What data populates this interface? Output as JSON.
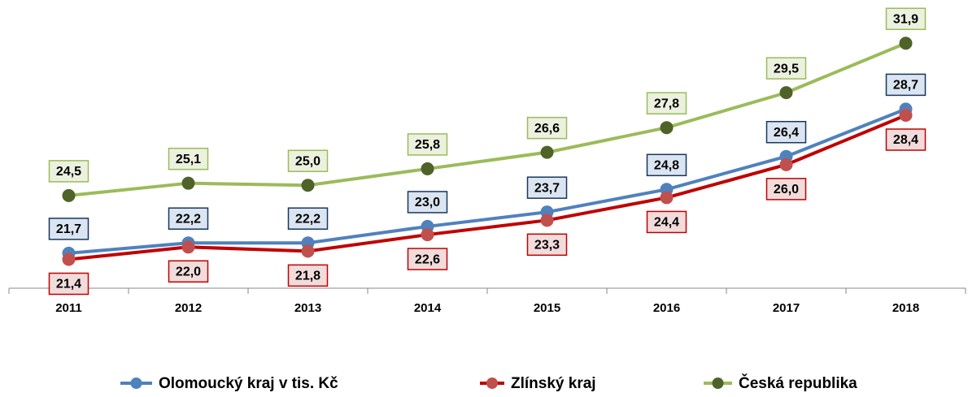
{
  "chart_data": {
    "type": "line",
    "categories": [
      "2011",
      "2012",
      "2013",
      "2014",
      "2015",
      "2016",
      "2017",
      "2018"
    ],
    "series": [
      {
        "name": "Olomoucký kraj v tis. Kč",
        "color": "#4f81bd",
        "values": [
          21.7,
          22.2,
          22.2,
          23.0,
          23.7,
          24.8,
          26.4,
          28.7
        ],
        "value_labels": [
          "21,7",
          "22,2",
          "22,2",
          "23,0",
          "23,7",
          "24,8",
          "26,4",
          "28,7"
        ]
      },
      {
        "name": "Zlínský kraj",
        "color": "#c00000",
        "values": [
          21.4,
          22.0,
          21.8,
          22.6,
          23.3,
          24.4,
          26.0,
          28.4
        ],
        "value_labels": [
          "21,4",
          "22,0",
          "21,8",
          "22,6",
          "23,3",
          "24,4",
          "26,0",
          "28,4"
        ]
      },
      {
        "name": "Česká republika",
        "color": "#9bbb59",
        "values": [
          24.5,
          25.1,
          25.0,
          25.8,
          26.6,
          27.8,
          29.5,
          31.9
        ],
        "value_labels": [
          "24,5",
          "25,1",
          "25,0",
          "25,8",
          "26,6",
          "27,8",
          "29,5",
          "31,9"
        ]
      }
    ],
    "ylim": [
      20,
      34
    ],
    "legend": "bottom"
  }
}
